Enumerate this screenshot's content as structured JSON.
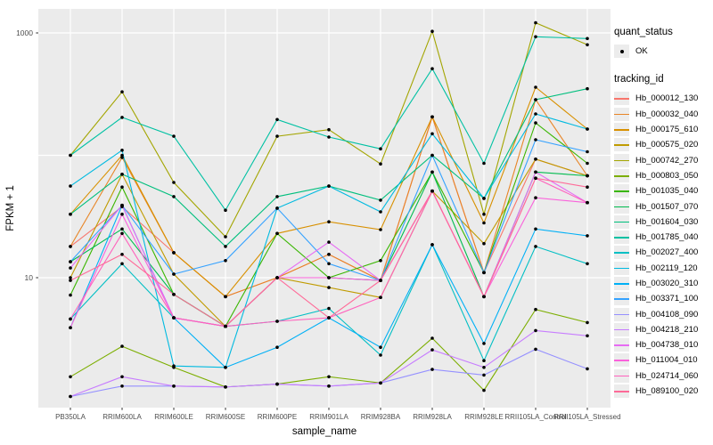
{
  "colors": {
    "panel_bg": "#EBEBEB",
    "grid": "#FFFFFF",
    "point": "#000000",
    "tick_label": "#4D4D4D",
    "axis_title": "#000000"
  },
  "legend": {
    "quant": {
      "title": "quant_status",
      "items": [
        {
          "label": "OK",
          "marker": "point"
        }
      ]
    },
    "tracking": {
      "title": "tracking_id"
    }
  },
  "chart_data": {
    "type": "line",
    "subtype": "line-with-points-log-y",
    "title": "",
    "xlabel": "sample_name",
    "ylabel": "FPKM + 1",
    "y_scale": "log10",
    "y_tick_labels": [
      "10",
      "1000"
    ],
    "y_tick_values": [
      10,
      1000
    ],
    "y_gridline_values": [
      10,
      100,
      1000
    ],
    "ylim": [
      1,
      1400
    ],
    "legend_position": "right",
    "grid": true,
    "categories": [
      "PB350LA",
      "RRIM600LA",
      "RRIM600LE",
      "RRIM600SE",
      "RRIM600PE",
      "RRIM901LA",
      "RRIM928BA",
      "RRIM928LA",
      "RRIM928LE",
      "RRII105LA_Control",
      "RRII105LA_Stressed"
    ],
    "quant_status_all_points": "OK",
    "series": [
      {
        "name": "Hb_000012_130",
        "color": "#F8766D",
        "values": [
          18,
          38,
          16,
          7,
          10,
          15.5,
          9.5,
          206,
          11,
          93,
          68
        ]
      },
      {
        "name": "Hb_000032_040",
        "color": "#E88526",
        "values": [
          18,
          96,
          16,
          7,
          10,
          15.5,
          9.5,
          206,
          11,
          285,
          68
        ]
      },
      {
        "name": "Hb_000175_610",
        "color": "#D89000",
        "values": [
          33,
          100,
          16,
          7,
          23,
          28.6,
          24.7,
          206,
          28,
          360,
          164
        ]
      },
      {
        "name": "Hb_000575_020",
        "color": "#C09B00",
        "values": [
          10,
          70,
          10.7,
          4,
          10,
          8.3,
          6.9,
          51,
          19,
          93,
          68
        ]
      },
      {
        "name": "Hb_000742_270",
        "color": "#A3A500",
        "values": [
          100,
          330,
          60,
          21.6,
          143,
          162,
          85,
          1030,
          33,
          1210,
          800
        ]
      },
      {
        "name": "Hb_000803_050",
        "color": "#7CAE00",
        "values": [
          1.55,
          2.75,
          1.85,
          1.28,
          1.35,
          1.55,
          1.38,
          3.2,
          1.2,
          5.5,
          4.3
        ]
      },
      {
        "name": "Hb_001035_040",
        "color": "#39B600",
        "values": [
          7.2,
          55,
          7.3,
          4,
          23,
          10,
          13.8,
          73,
          11,
          184,
          86
        ]
      },
      {
        "name": "Hb_001507_070",
        "color": "#00BB4E",
        "values": [
          13.5,
          25,
          7.3,
          4,
          10,
          10,
          9.5,
          73,
          7,
          73,
          68
        ]
      },
      {
        "name": "Hb_001604_030",
        "color": "#00BF7D",
        "values": [
          33,
          70,
          46,
          18,
          46,
          56,
          43,
          100,
          44.5,
          285,
          350
        ]
      },
      {
        "name": "Hb_001785_040",
        "color": "#00C1A3",
        "values": [
          100,
          204,
          143,
          35.6,
          196,
          141,
          113,
          510,
          86,
          930,
          900
        ]
      },
      {
        "name": "Hb_002027_400",
        "color": "#00BFC4",
        "values": [
          4.6,
          13,
          4.7,
          4,
          4.4,
          5.6,
          2.33,
          18.6,
          2.1,
          18,
          13
        ]
      },
      {
        "name": "Hb_002119_120",
        "color": "#00BAE0",
        "values": [
          56,
          110,
          1.9,
          1.85,
          37,
          56,
          34.5,
          150,
          44.5,
          218,
          164
        ]
      },
      {
        "name": "Hb_003020_310",
        "color": "#00B0F6",
        "values": [
          3.9,
          39,
          4.7,
          1.85,
          2.7,
          4.7,
          2.7,
          18.6,
          2.9,
          25,
          22
        ]
      },
      {
        "name": "Hb_003371_100",
        "color": "#35A2FF",
        "values": [
          13.5,
          39,
          10.7,
          13.8,
          37,
          13,
          9.5,
          100,
          11,
          134,
          107
        ]
      },
      {
        "name": "Hb_004108_090",
        "color": "#9590FF",
        "values": [
          1.07,
          1.3,
          1.3,
          1.28,
          1.35,
          1.3,
          1.38,
          1.78,
          1.6,
          2.6,
          1.8
        ]
      },
      {
        "name": "Hb_004218_210",
        "color": "#C77CFF",
        "values": [
          1.07,
          1.55,
          1.3,
          1.28,
          1.35,
          1.3,
          1.38,
          2.57,
          1.85,
          3.7,
          3.35
        ]
      },
      {
        "name": "Hb_004738_010",
        "color": "#E76BF3",
        "values": [
          12,
          39,
          4.7,
          4,
          10,
          19.5,
          9.5,
          51,
          7,
          73,
          41
        ]
      },
      {
        "name": "Hb_011004_010",
        "color": "#FA62DB",
        "values": [
          3.9,
          33,
          4.7,
          4,
          10,
          10,
          9.5,
          51,
          7,
          45,
          41
        ]
      },
      {
        "name": "Hb_024714_060",
        "color": "#FF62BC",
        "values": [
          4.6,
          23,
          4.7,
          4,
          4.4,
          4.7,
          6.9,
          51,
          7,
          65,
          41
        ]
      },
      {
        "name": "Hb_089100_020",
        "color": "#FF6A98",
        "values": [
          9.5,
          15.5,
          7.3,
          4,
          10,
          4.7,
          9.5,
          51,
          7,
          65,
          55
        ]
      }
    ]
  }
}
